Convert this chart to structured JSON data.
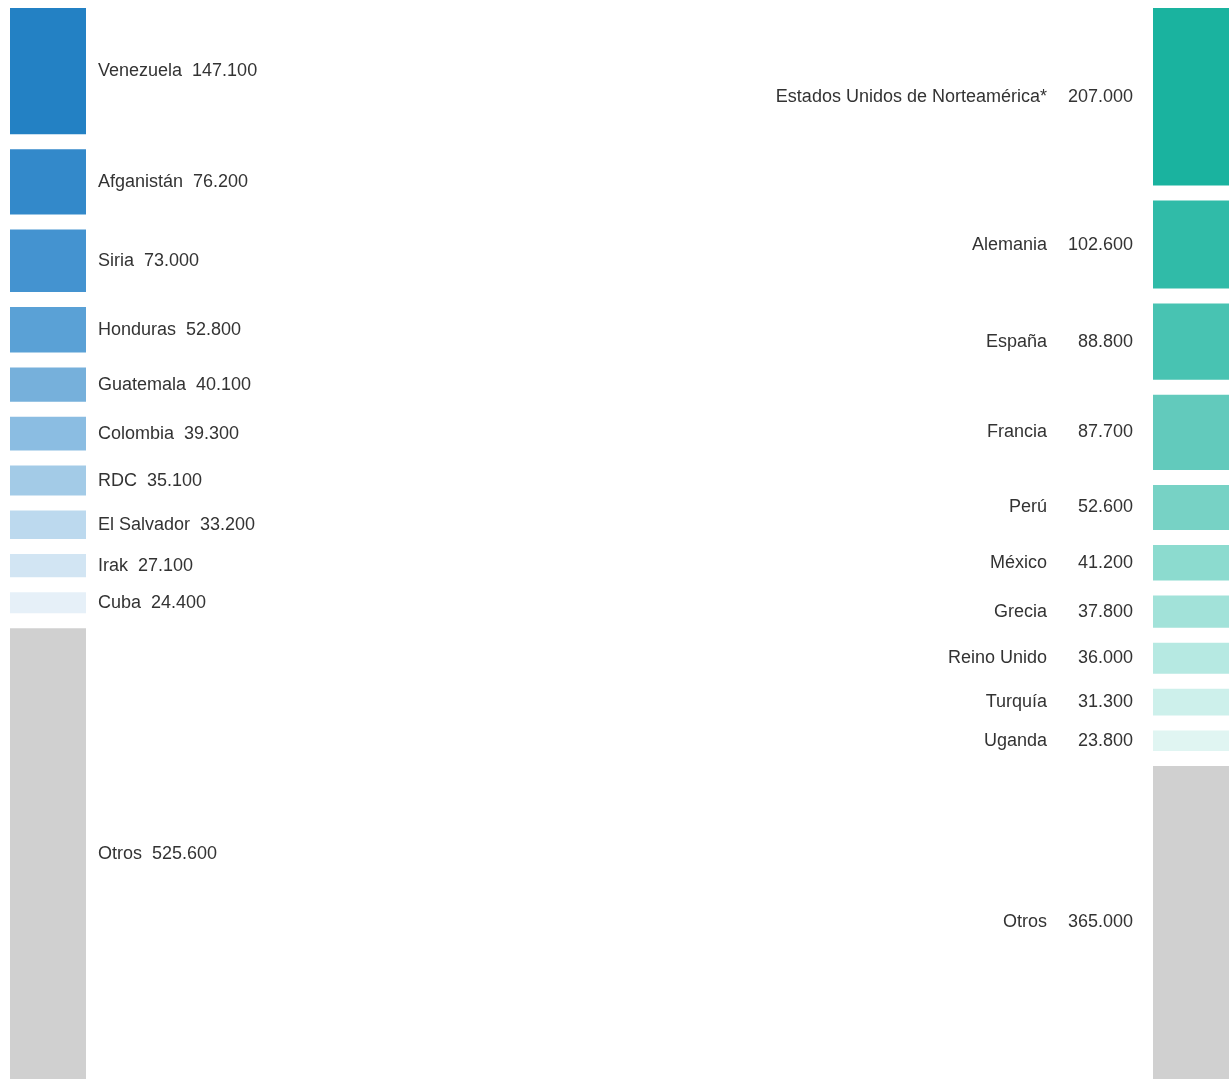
{
  "chart_data": [
    {
      "type": "other",
      "categories": [
        "Venezuela",
        "Afganistán",
        "Siria",
        "Honduras",
        "Guatemala",
        "Colombia",
        "RDC",
        "El Salvador",
        "Irak",
        "Cuba",
        "Otros"
      ],
      "values": [
        147100,
        76200,
        73000,
        52800,
        40100,
        39300,
        35100,
        33200,
        27100,
        24400,
        525600
      ],
      "value_labels": [
        "147.100",
        "76.200",
        "73.000",
        "52.800",
        "40.100",
        "39.300",
        "35.100",
        "33.200",
        "27.100",
        "24.400",
        "525.600"
      ],
      "colors": [
        "#2381c4",
        "#3389ca",
        "#4493d0",
        "#5aa1d6",
        "#76b0db",
        "#8bbde2",
        "#a3cbe7",
        "#bcd9ee",
        "#d2e5f3",
        "#e6f0f8",
        "#d0d0d0"
      ]
    },
    {
      "type": "other",
      "categories": [
        "Estados Unidos de Norteamérica*",
        "Alemania",
        "España",
        "Francia",
        "Perú",
        "México",
        "Grecia",
        "Reino Unido",
        "Turquía",
        "Uganda",
        "Otros"
      ],
      "values": [
        207000,
        102600,
        88800,
        87700,
        52600,
        41200,
        37800,
        36000,
        31300,
        23800,
        365000
      ],
      "value_labels": [
        "207.000",
        "102.600",
        "88.800",
        "87.700",
        "52.600",
        "41.200",
        "37.800",
        "36.000",
        "31.300",
        "23.800",
        "365.000"
      ],
      "colors": [
        "#1ab39f",
        "#30bba8",
        "#48c3b2",
        "#62cabc",
        "#77d2c5",
        "#8cdbcf",
        "#a2e2d9",
        "#b6e9e2",
        "#cdf0eb",
        "#e0f5f2",
        "#d0d0d0"
      ]
    }
  ]
}
